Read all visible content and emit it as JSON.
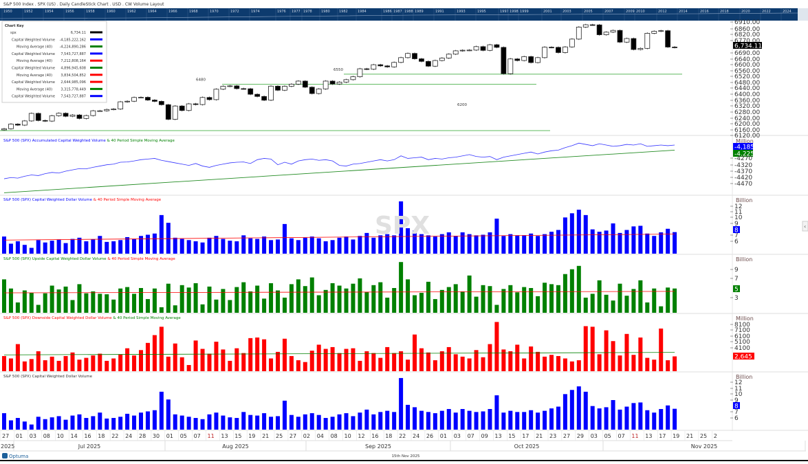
{
  "header": {
    "title": "S&P 500 Index . SPX (US) . Daily CandleStick Chart . USD . CW Volume Layout",
    "timeline_years": [
      "1950",
      "1952",
      "1954",
      "1956",
      "1958",
      "1960",
      "1962",
      "1964",
      "1966",
      "1968",
      "1970",
      "1972",
      "1974",
      "1976",
      "1977",
      "1978",
      "1980",
      "1982",
      "1984",
      "1986",
      "1987",
      "1988",
      "1989",
      "1991",
      "1993",
      "1995",
      "1997",
      "1998",
      "1999",
      "2001",
      "2003",
      "2005",
      "2007",
      "2009",
      "2010",
      "2012",
      "2014",
      "2016",
      "2018",
      "2020",
      "2022",
      "2024"
    ]
  },
  "chart_key": {
    "title": "Chart Key",
    "rows": [
      {
        "label": "spx",
        "value": "6,734.11",
        "color": "#000000"
      },
      {
        "label": "Capital Weighted Volume",
        "value": "-4,185,222,162",
        "color": "#0000ff"
      },
      {
        "label": "Moving Average (40)",
        "value": "-4,224,890,286",
        "color": "#008000"
      },
      {
        "label": "Capital Weighted Volume",
        "value": "7,543,727,887",
        "color": "#0000ff"
      },
      {
        "label": "Moving Average (40)",
        "value": "7,212,808,164",
        "color": "#ff0000"
      },
      {
        "label": "Capital Weighted Volume",
        "value": "4,896,945,608",
        "color": "#008000"
      },
      {
        "label": "Moving Average (40)",
        "value": "3,834,504,852",
        "color": "#ff0000"
      },
      {
        "label": "Capital Weighted Volume",
        "value": "2,644,985,096",
        "color": "#ff0000"
      },
      {
        "label": "Moving Average (40)",
        "value": "3,315,778,449",
        "color": "#008000"
      },
      {
        "label": "Capital Weighted Volume",
        "value": "7,543,727,887",
        "color": "#0000ff"
      }
    ]
  },
  "watermark": "SPX",
  "footer": {
    "logo": "Optuma",
    "date": "15th Nov 2025"
  },
  "x_axis": {
    "day_labels": [
      "27",
      "01",
      "03",
      "08",
      "10",
      "14",
      "16",
      "18",
      "22",
      "24",
      "28",
      "30",
      "01",
      "05",
      "07",
      "11",
      "13",
      "15",
      "19",
      "21",
      "25",
      "27",
      "02",
      "04",
      "08",
      "10",
      "12",
      "16",
      "18",
      "22",
      "24",
      "26",
      "01",
      "03",
      "07",
      "09",
      "13",
      "15",
      "17",
      "21",
      "23",
      "27",
      "29",
      "03",
      "05",
      "07",
      "11",
      "13",
      "17",
      "19",
      "21",
      "25",
      "2"
    ],
    "months": [
      {
        "label": "2025"
      },
      {
        "label": "Jul 2025"
      },
      {
        "label": "Aug 2025"
      },
      {
        "label": "Sep 2025"
      },
      {
        "label": "Oct 2025"
      },
      {
        "label": "Nov 2025"
      }
    ]
  },
  "chart_data": [
    {
      "type": "candlestick",
      "title": "",
      "last_value": "6,734.11",
      "y_ticks": [
        "6910.00",
        "6860.00",
        "6820.00",
        "6770.00",
        "6690.00",
        "6640.00",
        "6600.00",
        "6560.00",
        "6520.00",
        "6480.00",
        "6440.00",
        "6400.00",
        "6360.00",
        "6320.00",
        "6280.00",
        "6240.00",
        "6200.00",
        "6160.00",
        "6120.00"
      ],
      "ylim": [
        6120,
        6930
      ],
      "close": [
        6173,
        6205,
        6198,
        6227,
        6279,
        6230,
        6226,
        6263,
        6280,
        6259,
        6268,
        6244,
        6264,
        6297,
        6297,
        6306,
        6309,
        6359,
        6363,
        6389,
        6390,
        6371,
        6362,
        6339,
        6238,
        6330,
        6299,
        6345,
        6340,
        6389,
        6374,
        6446,
        6466,
        6469,
        6450,
        6449,
        6411,
        6396,
        6370,
        6467,
        6439,
        6466,
        6481,
        6502,
        6460,
        6416,
        6448,
        6502,
        6482,
        6495,
        6512,
        6532,
        6587,
        6584,
        6615,
        6607,
        6600,
        6631,
        6664,
        6693,
        6656,
        6638,
        6605,
        6644,
        6661,
        6688,
        6711,
        6715,
        6716,
        6740,
        6714,
        6753,
        6735,
        6553,
        6655,
        6644,
        6671,
        6630,
        6664,
        6736,
        6735,
        6699,
        6738,
        6792,
        6875,
        6891,
        6890,
        6822,
        6840,
        6852,
        6771,
        6796,
        6720,
        6728,
        6832,
        6846,
        6850,
        6737,
        6734.11
      ],
      "levels": [
        {
          "value": 6160,
          "label": ""
        },
        {
          "value": 6480,
          "label": "6480"
        },
        {
          "value": 6550,
          "label": "6550"
        }
      ],
      "annotation": "6200"
    },
    {
      "type": "line",
      "title_parts": [
        {
          "text": "S&P 500 (SPX)  Accumulated Capital Weighted Volume ",
          "color": "#0000ff"
        },
        {
          "text": "& 40 Period Simple Moving Average",
          "color": "#008000"
        }
      ],
      "unit": "Million",
      "y_ticks": [
        "-4270",
        "-4320",
        "-4370",
        "-4420",
        "-4470"
      ],
      "badges": [
        {
          "value": "-4,185",
          "color": "#0000ff"
        },
        {
          "value": "-4,225",
          "color": "#008000"
        }
      ],
      "series": [
        {
          "values": [
            -4450,
            -4440,
            -4445,
            -4430,
            -4420,
            -4425,
            -4410,
            -4400,
            -4405,
            -4390,
            -4380,
            -4370,
            -4372,
            -4360,
            -4350,
            -4340,
            -4335,
            -4320,
            -4318,
            -4310,
            -4300,
            -4295,
            -4290,
            -4305,
            -4315,
            -4325,
            -4335,
            -4345,
            -4330,
            -4350,
            -4360,
            -4345,
            -4335,
            -4325,
            -4320,
            -4318,
            -4330,
            -4300,
            -4290,
            -4295,
            -4340,
            -4320,
            -4335,
            -4310,
            -4300,
            -4295,
            -4305,
            -4300,
            -4310,
            -4345,
            -4350,
            -4335,
            -4330,
            -4320,
            -4310,
            -4300,
            -4310,
            -4300,
            -4270,
            -4290,
            -4285,
            -4280,
            -4300,
            -4290,
            -4295,
            -4285,
            -4280,
            -4270,
            -4260,
            -4275,
            -4280,
            -4275,
            -4300,
            -4280,
            -4270,
            -4260,
            -4250,
            -4240,
            -4255,
            -4240,
            -4230,
            -4225,
            -4205,
            -4190,
            -4170,
            -4180,
            -4190,
            -4175,
            -4185,
            -4195,
            -4190,
            -4180,
            -4185,
            -4175,
            -4195,
            -4190,
            -4185,
            -4190,
            -4185
          ],
          "color": "#0000ff"
        },
        {
          "ma_range": [
            -4560,
            -4225
          ],
          "color": "#008000"
        }
      ]
    },
    {
      "type": "bar",
      "title_parts": [
        {
          "text": "S&P 500 (SPX)  Capital Weighted Dollar Volume ",
          "color": "#0000ff"
        },
        {
          "text": "& 40 Period Simple Moving Average",
          "color": "#ff0000"
        }
      ],
      "unit": "Billion",
      "y_ticks": [
        "12",
        "11",
        "10",
        "9",
        "7",
        "6"
      ],
      "badge": {
        "value": "8",
        "color": "#0000ff"
      },
      "bar_color": "#0000ff",
      "values": [
        6.8,
        5.6,
        6.0,
        5.4,
        4.9,
        6.2,
        5.8,
        6.1,
        6.3,
        5.7,
        6.4,
        6.6,
        6.0,
        6.3,
        6.9,
        5.9,
        6.0,
        6.2,
        6.7,
        6.4,
        6.9,
        7.1,
        7.3,
        10.4,
        9.1,
        6.6,
        6.4,
        6.2,
        6.0,
        5.8,
        6.6,
        6.9,
        6.4,
        6.1,
        6.0,
        7.0,
        6.5,
        6.4,
        6.8,
        6.2,
        6.3,
        8.9,
        6.5,
        6.2,
        6.6,
        6.8,
        6.5,
        6.0,
        6.2,
        6.6,
        6.8,
        6.3,
        6.9,
        7.4,
        6.6,
        7.0,
        7.2,
        7.0,
        12.7,
        8.2,
        7.8,
        7.2,
        7.0,
        6.8,
        7.2,
        7.5,
        6.9,
        7.5,
        7.2,
        7.0,
        7.1,
        7.5,
        9.8,
        6.9,
        7.2,
        7.0,
        7.0,
        7.3,
        6.9,
        7.2,
        7.6,
        7.9,
        10.0,
        10.7,
        11.3,
        10.4,
        8.0,
        7.6,
        7.8,
        9.0,
        7.4,
        7.9,
        8.5,
        8.6,
        7.3,
        6.9,
        7.5,
        8.1,
        7.54
      ],
      "ma_range": [
        6.2,
        7.21
      ],
      "ma_color": "#ff0000"
    },
    {
      "type": "bar",
      "title_parts": [
        {
          "text": "S&P 500 (SPX)  Upside Capital Weighted Dollar Volume ",
          "color": "#008000"
        },
        {
          "text": "& 40 Period Simple Moving Average",
          "color": "#ff0000"
        }
      ],
      "unit": "Billion",
      "y_ticks": [
        "9",
        "7",
        "3"
      ],
      "badge": {
        "value": "5",
        "color": "#008000"
      },
      "bar_color": "#008000",
      "values": [
        6.8,
        4.9,
        2.0,
        4.5,
        4.0,
        1.5,
        3.9,
        5.5,
        4.7,
        5.3,
        2.5,
        5.8,
        3.9,
        4.3,
        3.8,
        3.7,
        2.6,
        4.9,
        5.2,
        3.8,
        5.0,
        2.7,
        4.9,
        1.0,
        5.9,
        1.4,
        5.6,
        5.1,
        6.0,
        1.6,
        5.3,
        2.6,
        4.8,
        2.5,
        5.2,
        6.2,
        4.3,
        5.5,
        2.8,
        6.0,
        4.5,
        3.0,
        5.8,
        6.8,
        5.4,
        7.2,
        3.5,
        4.6,
        6.0,
        5.5,
        4.9,
        5.9,
        7.0,
        4.2,
        5.6,
        6.2,
        3.0,
        5.0,
        10.4,
        6.8,
        3.5,
        4.0,
        6.3,
        2.7,
        4.6,
        5.2,
        5.8,
        4.3,
        7.6,
        3.2,
        5.6,
        5.4,
        1.5,
        4.8,
        5.6,
        4.1,
        5.2,
        5.0,
        3.3,
        6.1,
        5.8,
        5.6,
        7.9,
        8.9,
        9.6,
        3.0,
        3.8,
        6.6,
        3.6,
        2.4,
        5.9,
        3.4,
        4.8,
        6.6,
        2.0,
        4.9,
        1.2,
        5.1,
        4.9
      ],
      "ma_range": [
        4.0,
        4.3
      ],
      "ma_color": "#ff0000"
    },
    {
      "type": "bar",
      "title_parts": [
        {
          "text": "S&P 500 (SPX)  Downside Capital Weighted Dollar Volume ",
          "color": "#ff0000"
        },
        {
          "text": "& 40 Period Simple Moving Average",
          "color": "#008000"
        }
      ],
      "unit": "Million",
      "y_ticks": [
        "8100",
        "7100",
        "6100",
        "5100",
        "4100"
      ],
      "badge": {
        "value": "2,645",
        "color": "#ff0000"
      },
      "bar_color": "#ff0000",
      "values": [
        2700,
        2300,
        4700,
        1800,
        2200,
        3500,
        2000,
        2600,
        1900,
        2700,
        3300,
        2100,
        2400,
        2800,
        3100,
        1900,
        2300,
        3000,
        4000,
        2800,
        3700,
        4900,
        6200,
        7600,
        2600,
        4800,
        2500,
        1200,
        5300,
        3900,
        3100,
        5100,
        3800,
        1900,
        4000,
        3200,
        5700,
        5800,
        5500,
        2300,
        3400,
        5600,
        2700,
        2000,
        1700,
        3600,
        4600,
        3900,
        4200,
        3200,
        3900,
        4000,
        1900,
        3500,
        3200,
        2400,
        4200,
        3200,
        3500,
        2100,
        6300,
        4000,
        3300,
        2000,
        3500,
        4200,
        3000,
        2600,
        2300,
        3700,
        2500,
        4700,
        8400,
        3800,
        3500,
        4600,
        2300,
        4300,
        3400,
        2600,
        2900,
        2700,
        2300,
        1800,
        2000,
        7700,
        7600,
        3000,
        7000,
        5200,
        2800,
        6400,
        2900,
        5800,
        2400,
        2100,
        7300,
        2000,
        2645
      ],
      "ma_range": [
        2900,
        3316
      ],
      "ma_color": "#008000"
    },
    {
      "type": "bar",
      "title_parts": [
        {
          "text": "S&P 500 (SPX)  Capital Weighted Dollar Volume",
          "color": "#333333"
        }
      ],
      "unit": "Billion",
      "y_ticks": [
        "12",
        "11",
        "10",
        "9",
        "7",
        "6"
      ],
      "badge": {
        "value": "8",
        "color": "#0000ff"
      },
      "bar_color": "#0000ff",
      "values_same_as": "panel 3"
    }
  ]
}
